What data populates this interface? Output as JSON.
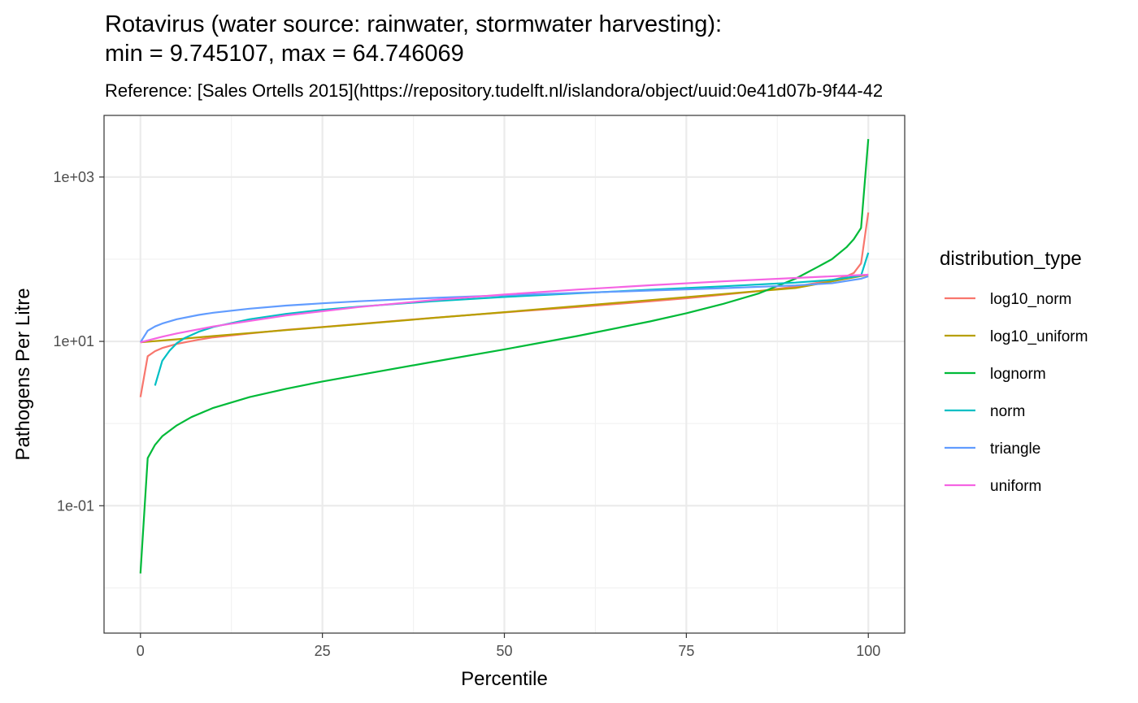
{
  "chart_data": {
    "type": "line",
    "title_line1": "Rotavirus (water source: rainwater, stormwater harvesting):",
    "title_line2": "min = 9.745107, max = 64.746069",
    "subtitle": "Reference: [Sales Ortells 2015](https://repository.tudelft.nl/islandora/object/uuid:0e41d07b-9f44-42",
    "xlabel": "Percentile",
    "ylabel": "Pathogens Per Litre",
    "xlim": [
      -5,
      105
    ],
    "ylim_log10": [
      -2.55,
      3.75
    ],
    "y_scale": "log10",
    "x_ticks": [
      0,
      25,
      50,
      75,
      100
    ],
    "x_tick_labels": [
      "0",
      "25",
      "50",
      "75",
      "100"
    ],
    "y_ticks": [
      0.1,
      10,
      1000
    ],
    "y_tick_labels": [
      "1e-01",
      "1e+01",
      "1e+03"
    ],
    "grid": true,
    "legend_title": "distribution_type",
    "legend_position": "right",
    "series": [
      {
        "name": "log10_norm",
        "color": "#F8766D",
        "x": [
          0,
          1,
          2,
          3,
          5,
          8,
          10,
          15,
          20,
          25,
          30,
          40,
          50,
          60,
          70,
          75,
          80,
          85,
          90,
          95,
          97,
          98,
          99,
          100
        ],
        "y": [
          2.1,
          6.6,
          7.6,
          8.3,
          9.3,
          10.5,
          11.2,
          12.5,
          13.8,
          15.0,
          16.3,
          19.3,
          22.5,
          26.2,
          30.7,
          33.5,
          36.9,
          41.0,
          46.5,
          55.5,
          62.0,
          68.0,
          89.0,
          370.0
        ]
      },
      {
        "name": "log10_uniform",
        "color": "#B79F00",
        "x": [
          0,
          5,
          10,
          20,
          30,
          40,
          50,
          60,
          70,
          80,
          90,
          100
        ],
        "y": [
          9.745,
          10.6,
          11.6,
          13.7,
          16.2,
          19.2,
          22.7,
          26.9,
          31.8,
          37.7,
          44.6,
          64.75
        ]
      },
      {
        "name": "lognorm",
        "color": "#00BA38",
        "x": [
          0,
          1,
          2,
          3,
          5,
          7,
          10,
          15,
          20,
          25,
          30,
          40,
          50,
          60,
          70,
          75,
          80,
          85,
          90,
          93,
          95,
          97,
          98,
          99,
          100
        ],
        "y": [
          0.015,
          0.38,
          0.55,
          0.7,
          0.95,
          1.2,
          1.55,
          2.1,
          2.65,
          3.25,
          3.9,
          5.6,
          8.0,
          11.6,
          17.5,
          22.0,
          28.5,
          38.5,
          58.0,
          80.0,
          100.0,
          140.0,
          175.0,
          240.0,
          2900.0
        ]
      },
      {
        "name": "norm",
        "color": "#00BFC4",
        "x": [
          2,
          3,
          4,
          5,
          6,
          8,
          10,
          15,
          20,
          25,
          30,
          40,
          50,
          60,
          70,
          80,
          90,
          95,
          99,
          100
        ],
        "y": [
          2.9,
          5.8,
          7.7,
          9.5,
          10.9,
          13.1,
          15.0,
          18.6,
          21.6,
          24.2,
          26.5,
          30.7,
          34.7,
          38.5,
          42.5,
          46.8,
          52.0,
          56.0,
          63.0,
          120.0
        ]
      },
      {
        "name": "triangle",
        "color": "#619CFF",
        "x": [
          0,
          1,
          2,
          3,
          5,
          8,
          10,
          15,
          20,
          25,
          30,
          40,
          50,
          60,
          70,
          80,
          90,
          95,
          99,
          100
        ],
        "y": [
          9.745,
          13.5,
          15.2,
          16.5,
          18.6,
          21.0,
          22.3,
          25.0,
          27.3,
          29.1,
          30.8,
          33.8,
          36.4,
          38.9,
          41.6,
          44.4,
          48.0,
          51.0,
          58.0,
          62.0
        ]
      },
      {
        "name": "uniform",
        "color": "#F564E3",
        "x": [
          0,
          3,
          5,
          10,
          20,
          30,
          40,
          50,
          60,
          70,
          80,
          90,
          100
        ],
        "y": [
          9.745,
          11.4,
          12.5,
          15.2,
          20.7,
          26.2,
          31.7,
          37.2,
          42.7,
          48.2,
          53.7,
          59.2,
          64.75
        ]
      }
    ]
  }
}
